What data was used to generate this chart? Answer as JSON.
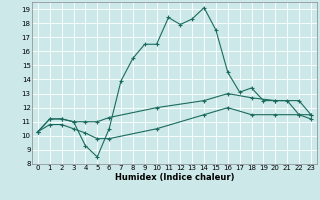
{
  "xlabel": "Humidex (Indice chaleur)",
  "xlim": [
    -0.5,
    23.5
  ],
  "ylim": [
    8,
    19.5
  ],
  "xticks": [
    0,
    1,
    2,
    3,
    4,
    5,
    6,
    7,
    8,
    9,
    10,
    11,
    12,
    13,
    14,
    15,
    16,
    17,
    18,
    19,
    20,
    21,
    22,
    23
  ],
  "yticks": [
    8,
    9,
    10,
    11,
    12,
    13,
    14,
    15,
    16,
    17,
    18,
    19
  ],
  "bg_color": "#cce8e8",
  "line_color": "#1a6b5e",
  "grid_color": "#ffffff",
  "line1_x": [
    0,
    1,
    2,
    3,
    4,
    5,
    6,
    7,
    8,
    9,
    10,
    11,
    12,
    13,
    14,
    15,
    16,
    17,
    18,
    19,
    20,
    21,
    22,
    23
  ],
  "line1_y": [
    10.3,
    11.2,
    11.2,
    11.0,
    9.3,
    8.5,
    10.5,
    13.9,
    15.5,
    16.5,
    16.5,
    18.4,
    17.9,
    18.3,
    19.1,
    17.5,
    14.5,
    13.1,
    13.4,
    12.5,
    12.5,
    12.5,
    11.5,
    11.5
  ],
  "line2_x": [
    0,
    1,
    2,
    3,
    4,
    5,
    6,
    10,
    14,
    16,
    18,
    20,
    22,
    23
  ],
  "line2_y": [
    10.3,
    11.2,
    11.2,
    11.0,
    11.0,
    11.0,
    11.3,
    12.0,
    12.5,
    13.0,
    12.7,
    12.5,
    12.5,
    11.5
  ],
  "line3_x": [
    0,
    1,
    2,
    3,
    4,
    5,
    6,
    10,
    14,
    16,
    18,
    20,
    22,
    23
  ],
  "line3_y": [
    10.3,
    10.8,
    10.8,
    10.5,
    10.2,
    9.8,
    9.8,
    10.5,
    11.5,
    12.0,
    11.5,
    11.5,
    11.5,
    11.2
  ]
}
